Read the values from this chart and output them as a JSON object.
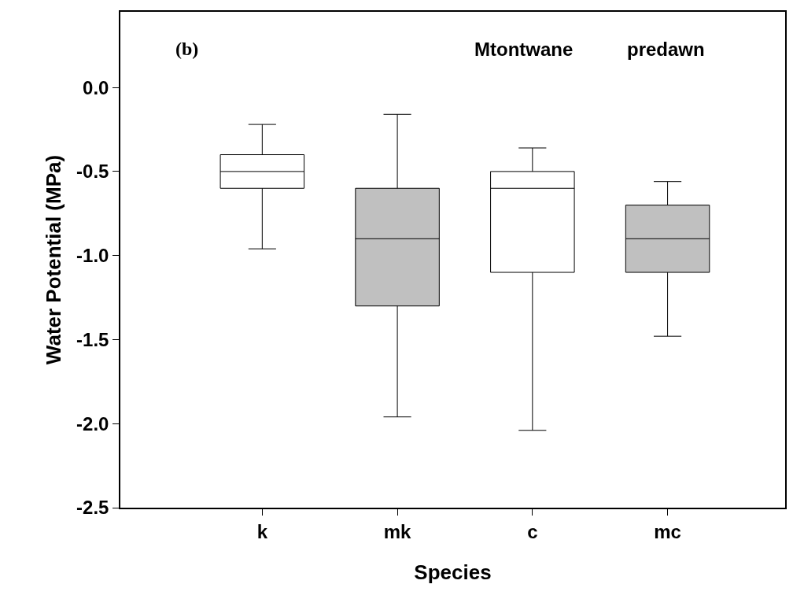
{
  "chart_data": {
    "type": "box",
    "xlabel": "Species",
    "ylabel": "Water Potential (MPa)",
    "annotations": [
      "(b)",
      "Mtontwane",
      "predawn"
    ],
    "categories": [
      "k",
      "mk",
      "c",
      "mc"
    ],
    "series": [
      {
        "colors": [
          "#ffffff",
          "#c0c0c0",
          "#ffffff",
          "#c0c0c0"
        ],
        "boxes": [
          {
            "low": -0.96,
            "q1": -0.6,
            "median": -0.5,
            "q3": -0.4,
            "high": -0.22
          },
          {
            "low": -1.96,
            "q1": -1.3,
            "median": -0.9,
            "q3": -0.6,
            "high": -0.16
          },
          {
            "low": -2.04,
            "q1": -1.1,
            "median": -0.6,
            "q3": -0.5,
            "high": -0.36
          },
          {
            "low": -1.48,
            "q1": -1.1,
            "median": -0.9,
            "q3": -0.7,
            "high": -0.56
          }
        ]
      }
    ],
    "ylim": [
      -2.5,
      0.45
    ],
    "yticks": [
      {
        "value": 0,
        "label": "0.0"
      },
      -0.5,
      {
        "value": -1,
        "label": "-1.0"
      },
      -1.5,
      {
        "value": -2,
        "label": "-2.0"
      },
      -2.5
    ]
  }
}
